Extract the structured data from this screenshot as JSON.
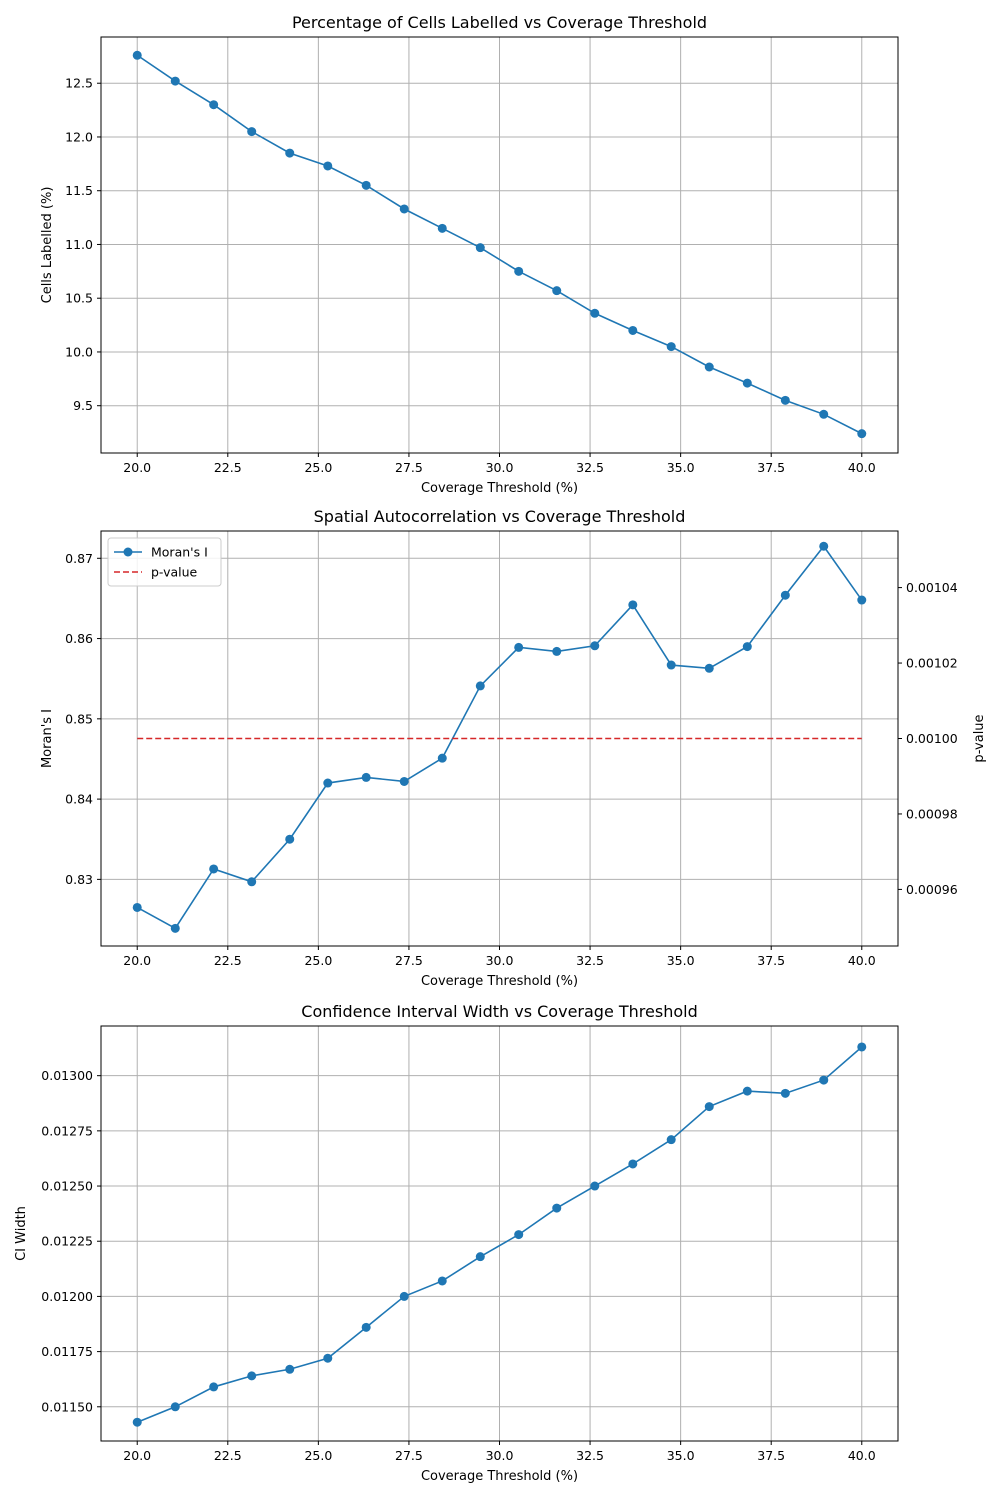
{
  "colors": {
    "series": "#1f77b4",
    "pvalue": "#d62728",
    "grid": "#b0b0b0",
    "axes": "#000000"
  },
  "chart_data": [
    {
      "type": "line",
      "title": "Percentage of Cells Labelled vs Coverage Threshold",
      "xlabel": "Coverage Threshold (%)",
      "ylabel": "Cells Labelled (%)",
      "xlim": [
        19.0,
        41.0
      ],
      "ylim": [
        9.06,
        12.93
      ],
      "xticks": [
        "20.0",
        "22.5",
        "25.0",
        "27.5",
        "30.0",
        "32.5",
        "35.0",
        "37.5",
        "40.0"
      ],
      "xtick_values": [
        20.0,
        22.5,
        25.0,
        27.5,
        30.0,
        32.5,
        35.0,
        37.5,
        40.0
      ],
      "yticks": [
        "9.5",
        "10.0",
        "10.5",
        "11.0",
        "11.5",
        "12.0",
        "12.5"
      ],
      "ytick_values": [
        9.5,
        10.0,
        10.5,
        11.0,
        11.5,
        12.0,
        12.5
      ],
      "grid": true,
      "x": [
        20.0,
        21.05,
        22.11,
        23.16,
        24.21,
        25.26,
        26.32,
        27.37,
        28.42,
        29.47,
        30.53,
        31.58,
        32.63,
        33.68,
        34.74,
        35.79,
        36.84,
        37.89,
        38.95,
        40.0
      ],
      "series": [
        {
          "values": [
            12.76,
            12.52,
            12.3,
            12.05,
            11.85,
            11.73,
            11.55,
            11.33,
            11.15,
            10.97,
            10.75,
            10.57,
            10.36,
            10.2,
            10.05,
            9.86,
            9.71,
            9.55,
            9.42,
            9.24
          ],
          "color": "#1f77b4",
          "marker": "circle"
        }
      ]
    },
    {
      "type": "line",
      "title": "Spatial Autocorrelation vs Coverage Threshold",
      "xlabel": "Coverage Threshold (%)",
      "ylabel": "Moran's I",
      "y2label": "p-value",
      "xlim": [
        19.0,
        41.0
      ],
      "ylim": [
        0.8217,
        0.8734
      ],
      "y2lim": [
        0.000945,
        0.001055
      ],
      "xticks": [
        "20.0",
        "22.5",
        "25.0",
        "27.5",
        "30.0",
        "32.5",
        "35.0",
        "37.5",
        "40.0"
      ],
      "xtick_values": [
        20.0,
        22.5,
        25.0,
        27.5,
        30.0,
        32.5,
        35.0,
        37.5,
        40.0
      ],
      "yticks": [
        "0.83",
        "0.84",
        "0.85",
        "0.86",
        "0.87"
      ],
      "ytick_values": [
        0.83,
        0.84,
        0.85,
        0.86,
        0.87
      ],
      "y2ticks": [
        "0.00096",
        "0.00098",
        "0.00100",
        "0.00102",
        "0.00104"
      ],
      "y2tick_values": [
        0.00096,
        0.00098,
        0.001,
        0.00102,
        0.00104
      ],
      "grid": true,
      "legend": {
        "placement": "top-left"
      },
      "x": [
        20.0,
        21.05,
        22.11,
        23.16,
        24.21,
        25.26,
        26.32,
        27.37,
        28.42,
        29.47,
        30.53,
        31.58,
        32.63,
        33.68,
        34.74,
        35.79,
        36.84,
        37.89,
        38.95,
        40.0
      ],
      "series": [
        {
          "name": "Moran's I",
          "values": [
            0.8265,
            0.8239,
            0.8313,
            0.8297,
            0.835,
            0.842,
            0.8427,
            0.8422,
            0.8451,
            0.8541,
            0.8589,
            0.8584,
            0.8591,
            0.8642,
            0.8567,
            0.8563,
            0.859,
            0.8654,
            0.8715,
            0.8648
          ],
          "color": "#1f77b4",
          "marker": "circle",
          "axis": "left"
        },
        {
          "name": "p-value",
          "values": [
            0.001,
            0.001,
            0.001,
            0.001,
            0.001,
            0.001,
            0.001,
            0.001,
            0.001,
            0.001,
            0.001,
            0.001,
            0.001,
            0.001,
            0.001,
            0.001,
            0.001,
            0.001,
            0.001,
            0.001
          ],
          "color": "#d62728",
          "dash": "dashed",
          "axis": "right"
        }
      ]
    },
    {
      "type": "line",
      "title": "Confidence Interval Width vs Coverage Threshold",
      "xlabel": "Coverage Threshold (%)",
      "ylabel": "CI Width",
      "xlim": [
        19.0,
        41.0
      ],
      "ylim": [
        0.011345,
        0.013225
      ],
      "xticks": [
        "20.0",
        "22.5",
        "25.0",
        "27.5",
        "30.0",
        "32.5",
        "35.0",
        "37.5",
        "40.0"
      ],
      "xtick_values": [
        20.0,
        22.5,
        25.0,
        27.5,
        30.0,
        32.5,
        35.0,
        37.5,
        40.0
      ],
      "yticks": [
        "0.01150",
        "0.01175",
        "0.01200",
        "0.01225",
        "0.01250",
        "0.01275",
        "0.01300"
      ],
      "ytick_values": [
        0.0115,
        0.01175,
        0.012,
        0.01225,
        0.0125,
        0.01275,
        0.013
      ],
      "grid": true,
      "x": [
        20.0,
        21.05,
        22.11,
        23.16,
        24.21,
        25.26,
        26.32,
        27.37,
        28.42,
        29.47,
        30.53,
        31.58,
        32.63,
        33.68,
        34.74,
        35.79,
        36.84,
        37.89,
        38.95,
        40.0
      ],
      "series": [
        {
          "values": [
            0.01143,
            0.0115,
            0.01159,
            0.01164,
            0.01167,
            0.01172,
            0.01186,
            0.012,
            0.01207,
            0.01218,
            0.01228,
            0.0124,
            0.0125,
            0.0126,
            0.01271,
            0.01286,
            0.01293,
            0.01292,
            0.01298,
            0.01313
          ],
          "color": "#1f77b4",
          "marker": "circle"
        }
      ]
    }
  ]
}
